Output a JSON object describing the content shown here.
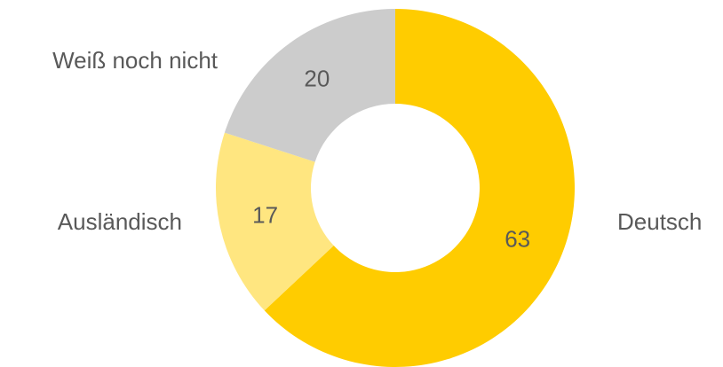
{
  "chart_data": {
    "type": "donut",
    "categories": [
      "Deutsch",
      "Ausländisch",
      "Weiß noch nicht"
    ],
    "values": [
      63,
      17,
      20
    ],
    "colors": [
      "#ffcc00",
      "#ffe680",
      "#cccccc"
    ]
  }
}
